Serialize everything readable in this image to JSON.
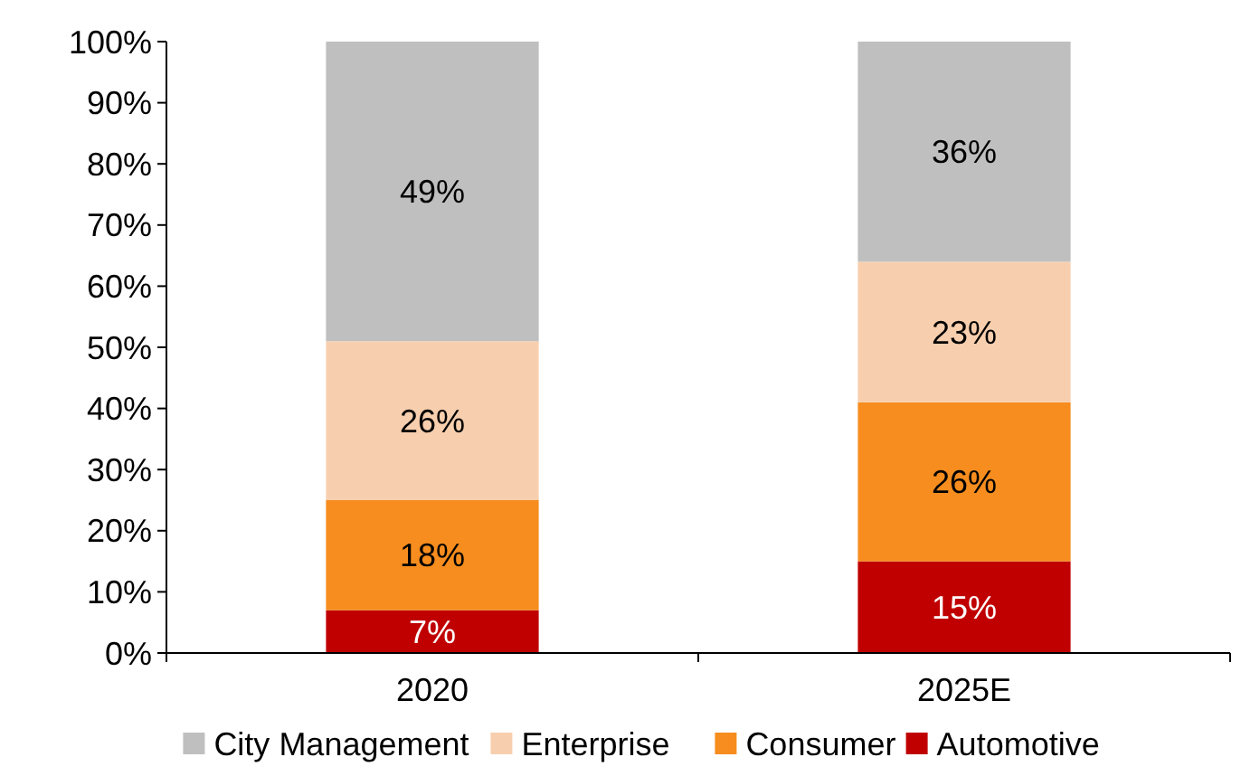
{
  "chart_data": {
    "type": "bar",
    "stacked": true,
    "categories": [
      "2020",
      "2025E"
    ],
    "series": [
      {
        "name": "Automotive",
        "color": "#c00000",
        "values": [
          7,
          15
        ],
        "value_labels": [
          "7%",
          "15%"
        ]
      },
      {
        "name": "Consumer",
        "color": "#f68d1e",
        "values": [
          18,
          26
        ],
        "value_labels": [
          "18%",
          "26%"
        ]
      },
      {
        "name": "Enterprise",
        "color": "#f8cfae",
        "values": [
          26,
          23
        ],
        "value_labels": [
          "26%",
          "23%"
        ]
      },
      {
        "name": "City Management",
        "color": "#bfbfbf",
        "values": [
          49,
          36
        ],
        "value_labels": [
          "49%",
          "36%"
        ]
      }
    ],
    "ylim": [
      0,
      100
    ],
    "yticks": [
      {
        "value": 0,
        "label": "0%"
      },
      {
        "value": 10,
        "label": "10%"
      },
      {
        "value": 20,
        "label": "20%"
      },
      {
        "value": 30,
        "label": "30%"
      },
      {
        "value": 40,
        "label": "40%"
      },
      {
        "value": 50,
        "label": "50%"
      },
      {
        "value": 60,
        "label": "60%"
      },
      {
        "value": 70,
        "label": "70%"
      },
      {
        "value": 80,
        "label": "80%"
      },
      {
        "value": 90,
        "label": "90%"
      },
      {
        "value": 100,
        "label": "100%"
      }
    ],
    "grid": false,
    "legend": "bottom"
  }
}
